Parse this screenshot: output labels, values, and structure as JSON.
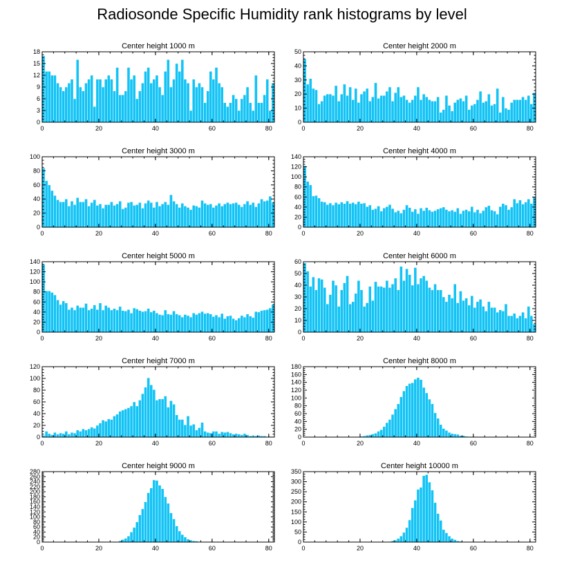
{
  "title": "Radiosonde Specific Humidity rank histograms by level",
  "colors": {
    "bar": "#12C3F5",
    "bar_edge": "#ffffff",
    "axis": "#000000"
  },
  "chart_data": [
    {
      "type": "bar",
      "title": "Center height 1000 m",
      "xlim": [
        0,
        82
      ],
      "ylim": [
        0,
        18
      ],
      "xticks": [
        0,
        20,
        40,
        60,
        80
      ],
      "yticks": [
        0,
        3,
        6,
        9,
        12,
        15,
        18
      ],
      "values": [
        17,
        13,
        13,
        12,
        12,
        10,
        9,
        8,
        9,
        10,
        11,
        6,
        16,
        9,
        8,
        10,
        11,
        12,
        4,
        11,
        11,
        9,
        11,
        12,
        11,
        8,
        14,
        7,
        7,
        8,
        14,
        11,
        12,
        6,
        8,
        10,
        13,
        14,
        10,
        11,
        12,
        9,
        7,
        13,
        16,
        9,
        11,
        15,
        13,
        16,
        11,
        10,
        3,
        11,
        9,
        10,
        9,
        5,
        8,
        13,
        11,
        14,
        10,
        9,
        5,
        4,
        5,
        7,
        6,
        3,
        6,
        7,
        9,
        5,
        3,
        12,
        5,
        5,
        7,
        11,
        3,
        10
      ]
    },
    {
      "type": "bar",
      "title": "Center height 2000 m",
      "xlim": [
        0,
        82
      ],
      "ylim": [
        0,
        50
      ],
      "xticks": [
        0,
        20,
        40,
        60,
        80
      ],
      "yticks": [
        0,
        10,
        20,
        30,
        40,
        50
      ],
      "values": [
        45,
        27,
        31,
        24,
        23,
        13,
        15,
        19,
        20,
        20,
        19,
        26,
        15,
        20,
        27,
        19,
        25,
        16,
        24,
        14,
        20,
        22,
        24,
        15,
        18,
        28,
        17,
        19,
        19,
        22,
        25,
        15,
        21,
        25,
        18,
        19,
        16,
        14,
        16,
        19,
        25,
        16,
        20,
        18,
        16,
        15,
        15,
        18,
        7,
        9,
        19,
        12,
        8,
        14,
        16,
        17,
        15,
        19,
        9,
        12,
        13,
        16,
        22,
        14,
        15,
        20,
        12,
        13,
        24,
        7,
        18,
        10,
        9,
        14,
        16,
        16,
        16,
        18,
        16,
        19,
        13,
        21
      ]
    },
    {
      "type": "bar",
      "title": "Center height 3000 m",
      "xlim": [
        0,
        82
      ],
      "ylim": [
        0,
        100
      ],
      "xticks": [
        0,
        20,
        40,
        60,
        80
      ],
      "yticks": [
        0,
        20,
        40,
        60,
        80,
        100
      ],
      "values": [
        84,
        66,
        60,
        52,
        45,
        39,
        36,
        36,
        40,
        30,
        37,
        32,
        42,
        36,
        36,
        40,
        30,
        35,
        39,
        31,
        33,
        27,
        32,
        32,
        36,
        31,
        33,
        37,
        26,
        28,
        35,
        36,
        31,
        32,
        35,
        27,
        34,
        38,
        35,
        28,
        36,
        30,
        33,
        36,
        32,
        46,
        37,
        33,
        28,
        34,
        30,
        28,
        25,
        31,
        30,
        28,
        38,
        34,
        32,
        33,
        28,
        31,
        34,
        30,
        33,
        35,
        33,
        34,
        35,
        32,
        29,
        33,
        37,
        32,
        35,
        29,
        34,
        40,
        37,
        38,
        44,
        35
      ]
    },
    {
      "type": "bar",
      "title": "Center height 4000 m",
      "xlim": [
        0,
        82
      ],
      "ylim": [
        0,
        140
      ],
      "xticks": [
        0,
        20,
        40,
        60,
        80
      ],
      "yticks": [
        0,
        20,
        40,
        60,
        80,
        100,
        120,
        140
      ],
      "values": [
        122,
        91,
        84,
        62,
        63,
        58,
        51,
        50,
        45,
        48,
        44,
        49,
        46,
        50,
        47,
        52,
        47,
        49,
        46,
        51,
        47,
        48,
        41,
        44,
        35,
        37,
        42,
        32,
        38,
        41,
        45,
        37,
        30,
        33,
        28,
        35,
        44,
        39,
        31,
        36,
        27,
        38,
        33,
        39,
        34,
        31,
        33,
        36,
        38,
        40,
        35,
        32,
        34,
        31,
        38,
        27,
        33,
        35,
        32,
        41,
        30,
        35,
        28,
        33,
        40,
        43,
        34,
        32,
        26,
        41,
        47,
        44,
        35,
        40,
        56,
        48,
        54,
        46,
        50,
        56,
        47,
        60
      ]
    },
    {
      "type": "bar",
      "title": "Center height 5000 m",
      "xlim": [
        0,
        82
      ],
      "ylim": [
        0,
        140
      ],
      "xticks": [
        0,
        20,
        40,
        60,
        80
      ],
      "yticks": [
        0,
        20,
        40,
        60,
        80,
        100,
        120,
        140
      ],
      "values": [
        135,
        82,
        82,
        79,
        74,
        64,
        55,
        62,
        58,
        45,
        49,
        44,
        53,
        49,
        49,
        57,
        44,
        47,
        54,
        45,
        58,
        44,
        53,
        49,
        44,
        47,
        44,
        51,
        43,
        42,
        45,
        38,
        48,
        46,
        43,
        41,
        42,
        47,
        40,
        43,
        38,
        35,
        34,
        44,
        36,
        35,
        42,
        36,
        34,
        30,
        35,
        33,
        30,
        38,
        35,
        38,
        41,
        37,
        38,
        36,
        31,
        34,
        30,
        37,
        27,
        32,
        33,
        27,
        24,
        28,
        33,
        30,
        36,
        32,
        29,
        41,
        40,
        43,
        44,
        45,
        48,
        55
      ]
    },
    {
      "type": "bar",
      "title": "Center height 6000 m",
      "xlim": [
        0,
        82
      ],
      "ylim": [
        0,
        60
      ],
      "xticks": [
        0,
        20,
        40,
        60,
        80
      ],
      "yticks": [
        0,
        10,
        20,
        30,
        40,
        50,
        60
      ],
      "values": [
        59,
        52,
        39,
        47,
        36,
        46,
        45,
        38,
        24,
        32,
        44,
        40,
        22,
        36,
        42,
        48,
        24,
        26,
        33,
        44,
        36,
        22,
        25,
        39,
        27,
        43,
        39,
        39,
        38,
        44,
        38,
        41,
        46,
        36,
        56,
        44,
        54,
        49,
        40,
        55,
        41,
        46,
        48,
        44,
        38,
        36,
        41,
        36,
        36,
        30,
        26,
        32,
        29,
        41,
        25,
        35,
        27,
        29,
        23,
        31,
        21,
        26,
        28,
        22,
        18,
        26,
        21,
        21,
        17,
        19,
        18,
        24,
        14,
        14,
        16,
        12,
        14,
        17,
        12,
        22,
        14,
        7
      ]
    },
    {
      "type": "bar",
      "title": "Center height 7000 m",
      "xlim": [
        0,
        82
      ],
      "ylim": [
        0,
        120
      ],
      "xticks": [
        0,
        20,
        40,
        60,
        80
      ],
      "yticks": [
        0,
        20,
        40,
        60,
        80,
        100,
        120
      ],
      "values": [
        3,
        10,
        6,
        4,
        8,
        5,
        7,
        6,
        10,
        5,
        8,
        7,
        12,
        10,
        14,
        12,
        14,
        17,
        15,
        20,
        24,
        29,
        27,
        31,
        30,
        36,
        39,
        44,
        46,
        48,
        50,
        53,
        60,
        53,
        63,
        74,
        85,
        101,
        89,
        81,
        63,
        65,
        65,
        70,
        51,
        62,
        56,
        38,
        30,
        30,
        21,
        36,
        20,
        22,
        12,
        16,
        25,
        10,
        8,
        7,
        10,
        10,
        6,
        9,
        8,
        9,
        7,
        5,
        6,
        5,
        4,
        6,
        4,
        2,
        3,
        2,
        3,
        2,
        2,
        1,
        1,
        1
      ]
    },
    {
      "type": "bar",
      "title": "Center height 8000 m",
      "xlim": [
        0,
        82
      ],
      "ylim": [
        0,
        180
      ],
      "xticks": [
        0,
        20,
        40,
        60,
        80
      ],
      "yticks": [
        0,
        20,
        40,
        60,
        80,
        100,
        120,
        140,
        160,
        180
      ],
      "values": [
        0,
        0,
        0,
        0,
        0,
        0,
        0,
        0,
        0,
        0,
        0,
        0,
        0,
        0,
        0,
        0,
        0,
        0,
        1,
        1,
        2,
        3,
        5,
        6,
        8,
        10,
        15,
        19,
        27,
        37,
        45,
        58,
        72,
        85,
        103,
        118,
        131,
        137,
        139,
        148,
        152,
        147,
        127,
        113,
        97,
        85,
        62,
        48,
        32,
        22,
        17,
        12,
        9,
        8,
        7,
        4,
        4,
        2,
        1,
        1,
        1,
        1,
        0,
        0,
        0,
        0,
        0,
        0,
        0,
        0,
        0,
        0,
        0,
        0,
        0,
        0,
        0,
        0,
        0,
        0,
        0,
        0
      ]
    },
    {
      "type": "bar",
      "title": "Center height 9000 m",
      "xlim": [
        0,
        82
      ],
      "ylim": [
        0,
        280
      ],
      "xticks": [
        0,
        20,
        40,
        60,
        80
      ],
      "yticks": [
        0,
        20,
        40,
        60,
        80,
        100,
        120,
        140,
        160,
        180,
        200,
        220,
        240,
        260,
        280
      ],
      "values": [
        0,
        0,
        0,
        0,
        0,
        0,
        0,
        0,
        0,
        0,
        0,
        0,
        0,
        0,
        0,
        0,
        0,
        0,
        0,
        0,
        0,
        0,
        0,
        0,
        0,
        0,
        1,
        5,
        10,
        15,
        24,
        40,
        58,
        80,
        108,
        132,
        160,
        196,
        215,
        247,
        245,
        226,
        212,
        180,
        154,
        116,
        92,
        64,
        44,
        30,
        20,
        12,
        8,
        5,
        4,
        2,
        1,
        1,
        0,
        0,
        0,
        0,
        0,
        0,
        0,
        0,
        0,
        0,
        0,
        0,
        0,
        0,
        0,
        0,
        0,
        0,
        0,
        0,
        0,
        0,
        0,
        0
      ]
    },
    {
      "type": "bar",
      "title": "Center height 10000 m",
      "xlim": [
        0,
        82
      ],
      "ylim": [
        0,
        350
      ],
      "xticks": [
        0,
        20,
        40,
        60,
        80
      ],
      "yticks": [
        0,
        50,
        100,
        150,
        200,
        250,
        300,
        350
      ],
      "values": [
        0,
        0,
        0,
        0,
        0,
        0,
        0,
        0,
        0,
        0,
        0,
        0,
        0,
        0,
        0,
        0,
        0,
        0,
        0,
        0,
        0,
        0,
        0,
        0,
        0,
        0,
        0,
        0,
        0,
        1,
        3,
        6,
        10,
        18,
        30,
        48,
        72,
        110,
        170,
        208,
        262,
        272,
        330,
        335,
        298,
        258,
        196,
        142,
        108,
        62,
        46,
        30,
        18,
        12,
        6,
        4,
        2,
        1,
        1,
        0,
        0,
        0,
        0,
        0,
        0,
        0,
        0,
        0,
        0,
        0,
        0,
        0,
        0,
        0,
        0,
        0,
        0,
        0,
        0,
        0,
        0,
        0
      ]
    }
  ]
}
